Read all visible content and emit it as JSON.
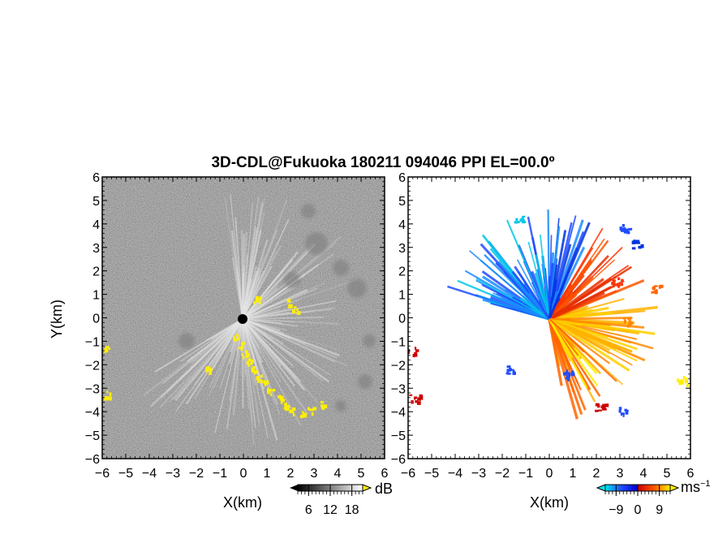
{
  "chart_data": [
    {
      "type": "heatmap",
      "title": "3D-CDL@Fukuoka 180211 094046 PPI EL=00.0º",
      "xlabel": "X(km)",
      "ylabel": "Y(km)",
      "xlim": [
        -6,
        6
      ],
      "ylim": [
        -6,
        6
      ],
      "xticks": [
        "-6",
        "-5",
        "-4",
        "-3",
        "-2",
        "-1",
        "0",
        "1",
        "2",
        "3",
        "4",
        "5",
        "6"
      ],
      "yticks": [
        "6",
        "5",
        "4",
        "3",
        "2",
        "1",
        "0",
        "-1",
        "-2",
        "-3",
        "-4",
        "-5",
        "-6"
      ],
      "colorbar": {
        "unit": "dB",
        "ticks": [
          "6",
          "12",
          "18"
        ],
        "range": [
          3,
          21
        ],
        "colors": [
          "#000000",
          "#ffffff"
        ],
        "extend_over": "#ffee00"
      }
    },
    {
      "type": "heatmap",
      "xlabel": "X(km)",
      "xlim": [
        -6,
        6
      ],
      "ylim": [
        -6,
        6
      ],
      "xticks": [
        "-6",
        "-5",
        "-4",
        "-3",
        "-2",
        "-1",
        "0",
        "1",
        "2",
        "3",
        "4",
        "5",
        "6"
      ],
      "yticks": [
        "6",
        "5",
        "4",
        "3",
        "2",
        "1",
        "0",
        "-1",
        "-2",
        "-3",
        "-4",
        "-5",
        "-6"
      ],
      "colorbar": {
        "unit": "ms",
        "unit_exponent": "−1",
        "ticks": [
          "−9",
          "0",
          "9"
        ],
        "range": [
          -13.5,
          13.5
        ],
        "colors": [
          "#00e5ee",
          "#1f4cff",
          "#0000cc",
          "#cc0000",
          "#ff5500",
          "#ffee00"
        ]
      }
    }
  ]
}
